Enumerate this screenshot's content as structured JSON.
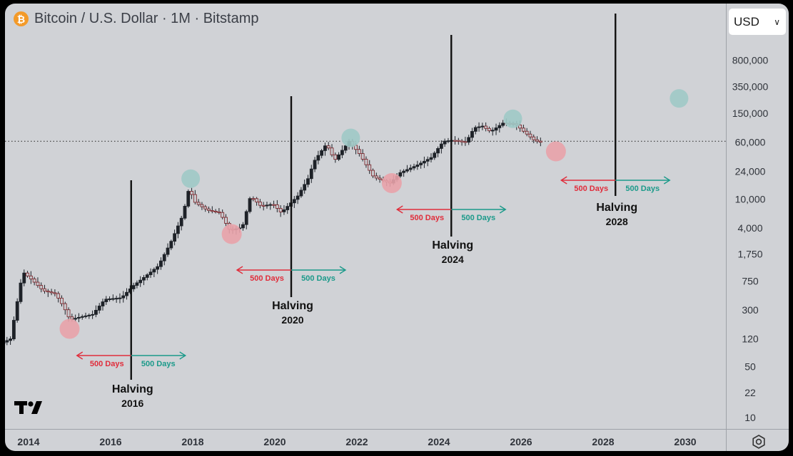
{
  "header": {
    "title": "Bitcoin / U.S. Dollar · 1M · Bitstamp",
    "currency": "USD",
    "icon": "bitcoin-icon"
  },
  "colors": {
    "up": "#26a69a",
    "down": "#ef5350",
    "red_label": "#e02d3b",
    "green_label": "#1b9a8a",
    "red_circle": "#e8a2aa",
    "green_circle": "#9ec9c6"
  },
  "chart_data": {
    "type": "candlestick",
    "title": "Bitcoin / U.S. Dollar · 1M · Bitstamp",
    "y_scale": "log",
    "x_ticks": [
      "2014",
      "2016",
      "2018",
      "2020",
      "2022",
      "2024",
      "2026",
      "2028",
      "2030"
    ],
    "y_ticks": [
      "800,000",
      "350,000",
      "150,000",
      "60,000",
      "24,000",
      "10,000",
      "4,000",
      "1,750",
      "750",
      "300",
      "120",
      "50",
      "22",
      "10"
    ],
    "current_price_line": 62000,
    "price_path": [
      [
        2013.1,
        40
      ],
      [
        2013.3,
        100
      ],
      [
        2013.6,
        120
      ],
      [
        2013.9,
        1000
      ],
      [
        2014.1,
        800
      ],
      [
        2014.4,
        550
      ],
      [
        2014.7,
        500
      ],
      [
        2014.9,
        330
      ],
      [
        2015.05,
        220
      ],
      [
        2015.3,
        240
      ],
      [
        2015.6,
        260
      ],
      [
        2015.9,
        420
      ],
      [
        2016.3,
        440
      ],
      [
        2016.6,
        650
      ],
      [
        2016.9,
        880
      ],
      [
        2017.2,
        1200
      ],
      [
        2017.5,
        2500
      ],
      [
        2017.8,
        6000
      ],
      [
        2017.95,
        14000
      ],
      [
        2018.1,
        9000
      ],
      [
        2018.4,
        7000
      ],
      [
        2018.7,
        6500
      ],
      [
        2018.95,
        3700
      ],
      [
        2019.25,
        4100
      ],
      [
        2019.45,
        11000
      ],
      [
        2019.7,
        8000
      ],
      [
        2020.0,
        8500
      ],
      [
        2020.2,
        6500
      ],
      [
        2020.6,
        11000
      ],
      [
        2020.85,
        19000
      ],
      [
        2021.0,
        33000
      ],
      [
        2021.3,
        57000
      ],
      [
        2021.5,
        34000
      ],
      [
        2021.85,
        62000
      ],
      [
        2022.1,
        42000
      ],
      [
        2022.45,
        20000
      ],
      [
        2022.85,
        16500
      ],
      [
        2023.1,
        23000
      ],
      [
        2023.5,
        29000
      ],
      [
        2023.85,
        37000
      ],
      [
        2024.15,
        62000
      ],
      [
        2024.4,
        64000
      ],
      [
        2024.7,
        60000
      ],
      [
        2024.9,
        95000
      ],
      [
        2025.1,
        100000
      ],
      [
        2025.3,
        84000
      ],
      [
        2025.6,
        110000
      ],
      [
        2025.9,
        108000
      ],
      [
        2026.1,
        85000
      ],
      [
        2026.35,
        65000
      ],
      [
        2026.5,
        60000
      ]
    ],
    "halvings": [
      {
        "label": "Halving",
        "year": "2016",
        "date": 2016.5
      },
      {
        "label": "Halving",
        "year": "2020",
        "date": 2020.4
      },
      {
        "label": "Halving",
        "year": "2024",
        "date": 2024.3
      },
      {
        "label": "Halving",
        "year": "2028",
        "date": 2028.3
      }
    ],
    "arrow_labels": {
      "before": "500 Days",
      "after": "500 Days"
    },
    "bottoms_marked": [
      [
        2015.0,
        165
      ],
      [
        2018.95,
        3300
      ],
      [
        2022.85,
        16500
      ],
      [
        2026.85,
        45000
      ]
    ],
    "tops_marked": [
      [
        2017.95,
        19000
      ],
      [
        2021.85,
        69000
      ],
      [
        2025.8,
        126000
      ],
      [
        2029.85,
        240000
      ]
    ]
  }
}
